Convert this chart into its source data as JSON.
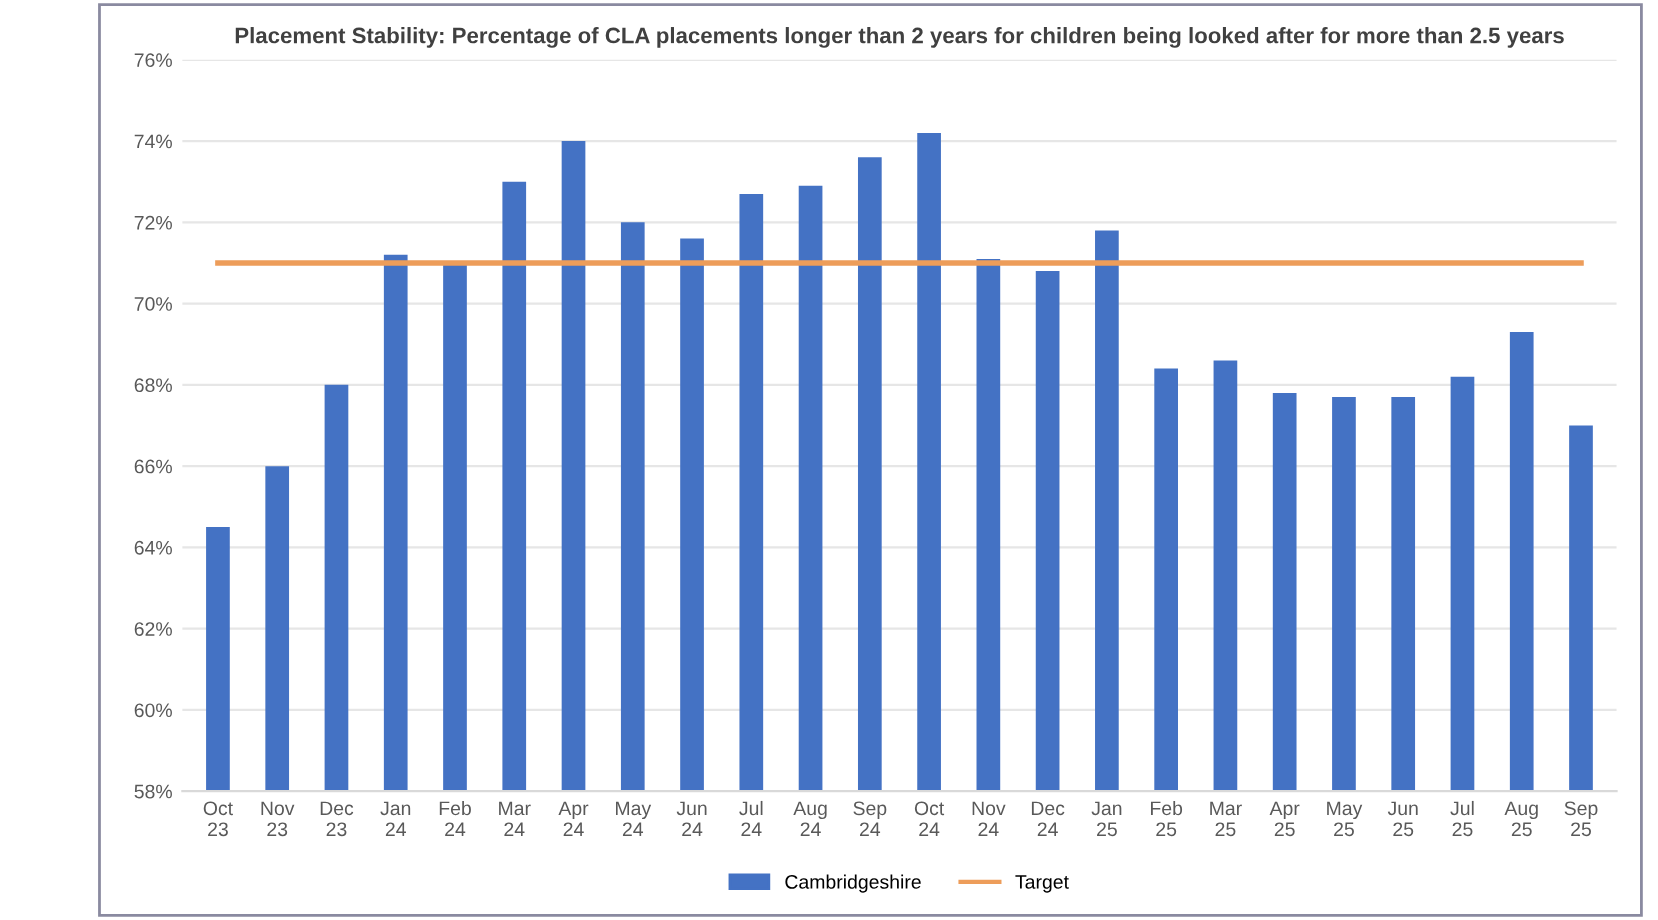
{
  "chart_data": {
    "type": "bar",
    "title": "Placement Stability: Percentage of CLA placements longer than 2 years for children being looked after for more than 2.5 years",
    "categories": [
      "Oct\n23",
      "Nov\n23",
      "Dec\n23",
      "Jan\n24",
      "Feb\n24",
      "Mar\n24",
      "Apr\n24",
      "May\n24",
      "Jun\n24",
      "Jul\n24",
      "Aug\n24",
      "Sep\n24",
      "Oct\n24",
      "Nov\n24",
      "Dec\n24",
      "Jan\n25",
      "Feb\n25",
      "Mar\n25",
      "Apr\n25",
      "May\n25",
      "Jun\n25",
      "Jul\n25",
      "Aug\n25",
      "Sep\n25"
    ],
    "series": [
      {
        "name": "Cambridgeshire",
        "color": "#4472c4",
        "values": [
          64.5,
          66.0,
          68.0,
          71.2,
          71.0,
          73.0,
          74.0,
          72.0,
          71.6,
          72.7,
          72.9,
          73.6,
          74.2,
          71.1,
          70.8,
          71.8,
          68.4,
          68.6,
          67.8,
          67.7,
          67.7,
          68.2,
          69.3,
          67.0
        ]
      },
      {
        "name": "Target",
        "type": "line",
        "color": "#ed9d5a",
        "values": [
          71,
          71,
          71,
          71,
          71,
          71,
          71,
          71,
          71,
          71,
          71,
          71,
          71,
          71,
          71,
          71,
          71,
          71,
          71,
          71,
          71,
          71,
          71,
          71
        ]
      }
    ],
    "ylim": [
      58,
      76
    ],
    "yticks": [
      {
        "value": 58,
        "label": "58%"
      },
      {
        "value": 60,
        "label": "60%"
      },
      {
        "value": 62,
        "label": "62%"
      },
      {
        "value": 64,
        "label": "64%"
      },
      {
        "value": 66,
        "label": "66%"
      },
      {
        "value": 68,
        "label": "68%"
      },
      {
        "value": 70,
        "label": "70%"
      },
      {
        "value": 72,
        "label": "72%"
      },
      {
        "value": 74,
        "label": "74%"
      },
      {
        "value": 76,
        "label": "76%"
      }
    ],
    "grid": "y",
    "legend": "bottom",
    "marker": "none"
  }
}
